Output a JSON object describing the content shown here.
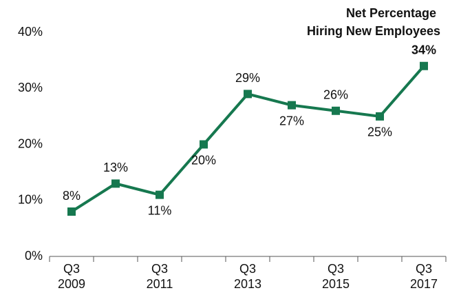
{
  "chart_data": {
    "type": "line",
    "title": [
      "Net Percentage",
      "Hiring New Employees"
    ],
    "categories": [
      [
        "Q3",
        "2009"
      ],
      null,
      [
        "Q3",
        "2011"
      ],
      null,
      [
        "Q3",
        "2013"
      ],
      null,
      [
        "Q3",
        "2015"
      ],
      null,
      [
        "Q3",
        "2017"
      ]
    ],
    "series": [
      {
        "color": "#16784f",
        "values": [
          8,
          13,
          11,
          20,
          29,
          27,
          26,
          25,
          34
        ],
        "value_labels": [
          "8%",
          "13%",
          "11%",
          "20%",
          "29%",
          "27%",
          "26%",
          "25%",
          "34%"
        ]
      }
    ],
    "ylim": [
      0,
      40
    ],
    "yticks": [
      {
        "value": 0,
        "label": "0%"
      },
      {
        "value": 10,
        "label": "10%"
      },
      {
        "value": 20,
        "label": "20%"
      },
      {
        "value": 30,
        "label": "30%"
      },
      {
        "value": 40,
        "label": "40%"
      }
    ],
    "grid": false
  }
}
